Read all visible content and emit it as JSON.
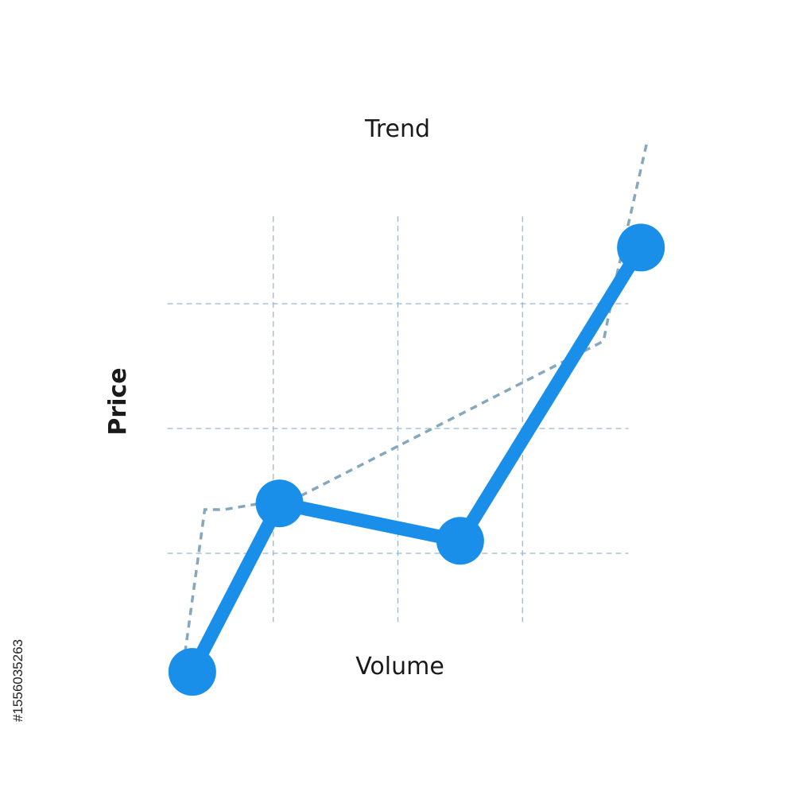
{
  "chart_data": {
    "type": "line",
    "title": "Trend",
    "xlabel": "Volume",
    "ylabel": "Price",
    "xlim": [
      0,
      4
    ],
    "ylim": [
      0,
      4
    ],
    "grid": true,
    "series": [
      {
        "points": [
          {
            "x": 0.35,
            "y": 0.05
          },
          {
            "x": 1.05,
            "y": 1.4
          },
          {
            "x": 2.5,
            "y": 1.1
          },
          {
            "x": 3.95,
            "y": 3.45
          }
        ],
        "color": "#1a8fea"
      }
    ],
    "trend": {
      "style": "dashed",
      "color": "#86a8bc",
      "points": [
        {
          "x": 0.25,
          "y": -0.1
        },
        {
          "x": 0.45,
          "y": 1.35
        },
        {
          "x": 0.6,
          "y": 1.35
        },
        {
          "x": 1.2,
          "y": 1.45
        },
        {
          "x": 3.65,
          "y": 2.7
        },
        {
          "x": 3.75,
          "y": 3.2
        },
        {
          "x": 4.0,
          "y": 4.3
        }
      ]
    }
  },
  "side_text": "#1556035263"
}
